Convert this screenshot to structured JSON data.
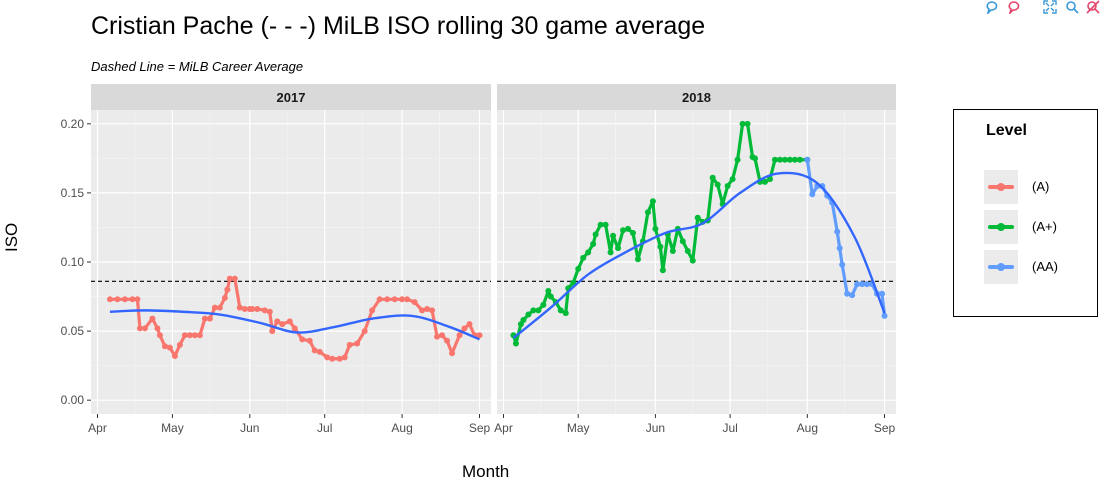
{
  "chart_data": {
    "type": "line",
    "title": "Cristian Pache (- - -) MiLB ISO rolling 30 game average",
    "subtitle": "Dashed Line = MiLB Career Average",
    "xlabel": "Month",
    "ylabel": "ISO",
    "ylim": [
      -0.01,
      0.21
    ],
    "y_ticks": [
      "0.00",
      "0.05",
      "0.10",
      "0.15",
      "0.20"
    ],
    "career_average": 0.086,
    "legend": {
      "title": "Level",
      "placement": "right",
      "entries": [
        {
          "label": "(A)",
          "color": "#F8766D"
        },
        {
          "label": "(A+)",
          "color": "#00BA38"
        },
        {
          "label": "(AA)",
          "color": "#619CFF"
        }
      ]
    },
    "smooth_color": "#3366FF",
    "panels": [
      {
        "label": "2017",
        "x_ticks": [
          "Apr",
          "May",
          "Jun",
          "Jul",
          "Aug",
          "Sep"
        ],
        "series": [
          {
            "name": "(A)",
            "x": [
              "2017-04-06",
              "2017-04-09",
              "2017-04-12",
              "2017-04-15",
              "2017-04-17",
              "2017-04-18",
              "2017-04-20",
              "2017-04-23",
              "2017-04-25",
              "2017-04-26",
              "2017-04-28",
              "2017-04-30",
              "2017-05-02",
              "2017-05-04",
              "2017-05-06",
              "2017-05-08",
              "2017-05-10",
              "2017-05-12",
              "2017-05-14",
              "2017-05-16",
              "2017-05-18",
              "2017-05-20",
              "2017-05-22",
              "2017-05-23",
              "2017-05-24",
              "2017-05-26",
              "2017-05-28",
              "2017-05-30",
              "2017-06-01",
              "2017-06-02",
              "2017-06-04",
              "2017-06-07",
              "2017-06-09",
              "2017-06-10",
              "2017-06-12",
              "2017-06-14",
              "2017-06-17",
              "2017-06-19",
              "2017-06-22",
              "2017-06-25",
              "2017-06-27",
              "2017-06-29",
              "2017-07-02",
              "2017-07-04",
              "2017-07-07",
              "2017-07-09",
              "2017-07-11",
              "2017-07-14",
              "2017-07-17",
              "2017-07-20",
              "2017-07-23",
              "2017-07-26",
              "2017-07-29",
              "2017-08-01",
              "2017-08-03",
              "2017-08-06",
              "2017-08-09",
              "2017-08-11",
              "2017-08-13",
              "2017-08-15",
              "2017-08-17",
              "2017-08-19",
              "2017-08-21",
              "2017-08-24",
              "2017-08-26",
              "2017-08-28",
              "2017-08-30",
              "2017-09-01"
            ],
            "y": [
              0.073,
              0.073,
              0.073,
              0.073,
              0.073,
              0.052,
              0.052,
              0.059,
              0.052,
              0.047,
              0.039,
              0.038,
              0.032,
              0.04,
              0.047,
              0.047,
              0.047,
              0.047,
              0.059,
              0.059,
              0.067,
              0.067,
              0.074,
              0.08,
              0.088,
              0.088,
              0.067,
              0.066,
              0.066,
              0.066,
              0.066,
              0.065,
              0.064,
              0.05,
              0.057,
              0.055,
              0.057,
              0.052,
              0.044,
              0.043,
              0.036,
              0.035,
              0.031,
              0.03,
              0.03,
              0.031,
              0.04,
              0.041,
              0.05,
              0.065,
              0.073,
              0.073,
              0.073,
              0.073,
              0.073,
              0.071,
              0.065,
              0.066,
              0.065,
              0.046,
              0.047,
              0.043,
              0.034,
              0.047,
              0.052,
              0.055,
              0.047,
              0.047
            ]
          }
        ],
        "smooth": {
          "x": [
            "2017-04-06",
            "2017-04-20",
            "2017-05-05",
            "2017-05-20",
            "2017-06-05",
            "2017-06-20",
            "2017-07-05",
            "2017-07-20",
            "2017-08-05",
            "2017-08-20",
            "2017-09-01"
          ],
          "y": [
            0.064,
            0.065,
            0.064,
            0.062,
            0.056,
            0.049,
            0.053,
            0.059,
            0.061,
            0.053,
            0.044
          ]
        }
      },
      {
        "label": "2018",
        "x_ticks": [
          "Apr",
          "May",
          "Jun",
          "Jul",
          "Aug",
          "Sep"
        ],
        "series": [
          {
            "name": "(A+)",
            "x": [
              "2018-04-05",
              "2018-04-06",
              "2018-04-08",
              "2018-04-09",
              "2018-04-11",
              "2018-04-13",
              "2018-04-15",
              "2018-04-17",
              "2018-04-19",
              "2018-04-20",
              "2018-04-22",
              "2018-04-24",
              "2018-04-26",
              "2018-04-27",
              "2018-04-29",
              "2018-05-01",
              "2018-05-03",
              "2018-05-05",
              "2018-05-07",
              "2018-05-08",
              "2018-05-10",
              "2018-05-12",
              "2018-05-14",
              "2018-05-15",
              "2018-05-17",
              "2018-05-19",
              "2018-05-21",
              "2018-05-23",
              "2018-05-25",
              "2018-05-27",
              "2018-05-29",
              "2018-05-31",
              "2018-06-01",
              "2018-06-03",
              "2018-06-04",
              "2018-06-06",
              "2018-06-08",
              "2018-06-10",
              "2018-06-12",
              "2018-06-14",
              "2018-06-16",
              "2018-06-18",
              "2018-06-20",
              "2018-06-22",
              "2018-06-24",
              "2018-06-26",
              "2018-06-28",
              "2018-06-30",
              "2018-07-02",
              "2018-07-04",
              "2018-07-06",
              "2018-07-08",
              "2018-07-10",
              "2018-07-11",
              "2018-07-13",
              "2018-07-15",
              "2018-07-17",
              "2018-07-19",
              "2018-07-21",
              "2018-07-23",
              "2018-07-25",
              "2018-07-27",
              "2018-07-29",
              "2018-08-01"
            ],
            "y": [
              0.047,
              0.041,
              0.055,
              0.058,
              0.062,
              0.065,
              0.065,
              0.069,
              0.079,
              0.075,
              0.071,
              0.065,
              0.063,
              0.081,
              0.085,
              0.095,
              0.103,
              0.107,
              0.113,
              0.12,
              0.127,
              0.127,
              0.107,
              0.119,
              0.11,
              0.123,
              0.124,
              0.121,
              0.102,
              0.115,
              0.136,
              0.144,
              0.124,
              0.111,
              0.094,
              0.12,
              0.108,
              0.124,
              0.115,
              0.108,
              0.101,
              0.132,
              0.129,
              0.13,
              0.161,
              0.156,
              0.142,
              0.155,
              0.16,
              0.174,
              0.2,
              0.2,
              0.176,
              0.175,
              0.158,
              0.158,
              0.16,
              0.174,
              0.174,
              0.174,
              0.174,
              0.174,
              0.174,
              0.174
            ]
          },
          {
            "name": "(AA)",
            "x": [
              "2018-08-01",
              "2018-08-03",
              "2018-08-05",
              "2018-08-07",
              "2018-08-09",
              "2018-08-11",
              "2018-08-13",
              "2018-08-14",
              "2018-08-15",
              "2018-08-17",
              "2018-08-19",
              "2018-08-21",
              "2018-08-23",
              "2018-08-25",
              "2018-08-27",
              "2018-08-29",
              "2018-08-31",
              "2018-09-01"
            ],
            "y": [
              0.174,
              0.149,
              0.155,
              0.155,
              0.148,
              0.143,
              0.122,
              0.11,
              0.098,
              0.077,
              0.076,
              0.084,
              0.084,
              0.084,
              0.084,
              0.077,
              0.077,
              0.061
            ]
          }
        ],
        "smooth": {
          "x": [
            "2018-04-05",
            "2018-04-20",
            "2018-05-05",
            "2018-05-20",
            "2018-06-05",
            "2018-06-20",
            "2018-07-05",
            "2018-07-20",
            "2018-08-05",
            "2018-08-20",
            "2018-09-01"
          ],
          "y": [
            0.045,
            0.067,
            0.091,
            0.107,
            0.121,
            0.128,
            0.15,
            0.164,
            0.157,
            0.118,
            0.063
          ]
        }
      }
    ]
  }
}
